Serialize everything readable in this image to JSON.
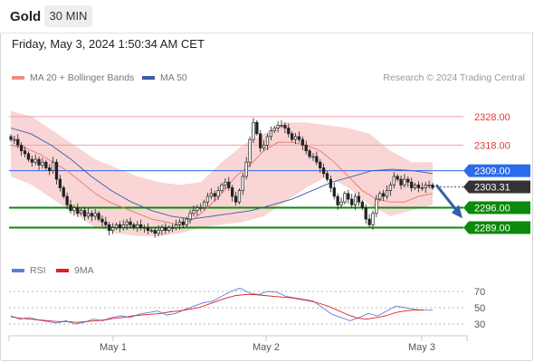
{
  "header": {
    "title": "Gold",
    "interval": "30 MIN"
  },
  "timestamp": "Friday, May 3, 2024 1:50:34 AM CET",
  "legend": {
    "main": [
      {
        "label": "MA 20 + Bollinger Bands",
        "color": "#f28b82"
      },
      {
        "label": "MA 50",
        "color": "#3a5ea8"
      }
    ],
    "rsi": [
      {
        "label": "RSI",
        "color": "#5b7fd6"
      },
      {
        "label": "9MA",
        "color": "#e02020"
      }
    ]
  },
  "copyright": "Research © 2024 Trading Central",
  "chart_data": [
    {
      "type": "candlestick",
      "title": "Gold",
      "xlabel": "",
      "ylabel": "",
      "ylim": [
        2283,
        2336
      ],
      "x_tick_labels": [
        "May 1",
        "May 2",
        "May 3"
      ],
      "last_price": 2303.31,
      "levels": [
        {
          "label": "2328.00",
          "value": 2328.0,
          "style": "resistance",
          "color": "#f29a9a"
        },
        {
          "label": "2318.00",
          "value": 2318.0,
          "style": "resistance",
          "color": "#f29a9a"
        },
        {
          "label": "2309.00",
          "value": 2309.0,
          "style": "pivot",
          "color": "#2a6bec"
        },
        {
          "label": "2303.31",
          "value": 2303.31,
          "style": "last-price",
          "color": "#333333"
        },
        {
          "label": "2296.00",
          "value": 2296.0,
          "style": "support",
          "color": "#0b8a0b"
        },
        {
          "label": "2289.00",
          "value": 2289.0,
          "style": "support",
          "color": "#0b8a0b"
        }
      ],
      "forecast_arrow": {
        "from": 2304,
        "to": 2291,
        "color": "#2f5fa8"
      },
      "close_series": [
        2320,
        2320,
        2318,
        2316,
        2315,
        2313,
        2312,
        2313,
        2311,
        2312,
        2310,
        2309,
        2312,
        2306,
        2303,
        2300,
        2297,
        2295,
        2296,
        2294,
        2295,
        2293,
        2294,
        2293,
        2294,
        2292,
        2291,
        2290,
        2288,
        2289,
        2290,
        2289,
        2290,
        2291,
        2290,
        2289,
        2290,
        2289,
        2289,
        2288,
        2288,
        2287,
        2288,
        2289,
        2288,
        2289,
        2289,
        2290,
        2291,
        2290,
        2292,
        2294,
        2295,
        2296,
        2296,
        2298,
        2300,
        2301,
        2300,
        2302,
        2304,
        2305,
        2303,
        2300,
        2298,
        2302,
        2307,
        2312,
        2320,
        2326,
        2322,
        2317,
        2318,
        2321,
        2323,
        2324,
        2325,
        2325,
        2324,
        2322,
        2320,
        2321,
        2320,
        2318,
        2316,
        2314,
        2314,
        2312,
        2310,
        2308,
        2306,
        2303,
        2300,
        2297,
        2298,
        2301,
        2299,
        2297,
        2300,
        2298,
        2296,
        2292,
        2290,
        2294,
        2299,
        2301,
        2300,
        2302,
        2304,
        2307,
        2306,
        2304,
        2306,
        2305,
        2303,
        2304,
        2303,
        2303,
        2304,
        2304,
        2303
      ],
      "ma20": [
        2318,
        2317,
        2315,
        2312,
        2309,
        2305,
        2301,
        2298,
        2296,
        2294,
        2292,
        2291,
        2290,
        2292,
        2296,
        2301,
        2307,
        2311,
        2316,
        2319,
        2319,
        2318,
        2316,
        2312,
        2307,
        2302,
        2299,
        2298,
        2298,
        2300,
        2301
      ],
      "ma50": [
        2324,
        2322,
        2318,
        2313,
        2307,
        2302,
        2298,
        2295,
        2293,
        2292,
        2293,
        2294,
        2295,
        2297,
        2299,
        2302,
        2305,
        2307,
        2309,
        2309.5,
        2309,
        2308
      ],
      "bollinger_upper": [
        2330,
        2328,
        2323,
        2318,
        2313,
        2310,
        2307,
        2305,
        2304,
        2305,
        2312,
        2318,
        2322,
        2326,
        2326,
        2325,
        2324,
        2322,
        2316,
        2312,
        2312
      ],
      "bollinger_lower": [
        2307,
        2304,
        2299,
        2294,
        2289,
        2287,
        2286,
        2286,
        2287,
        2289,
        2290,
        2291,
        2293,
        2298,
        2303,
        2307,
        2303,
        2297,
        2293,
        2295,
        2297
      ]
    },
    {
      "type": "line",
      "title": "",
      "ylim": [
        20,
        80
      ],
      "y_ticks": [
        70,
        50,
        30
      ],
      "x_tick_labels": [
        "May 1",
        "May 2",
        "May 3"
      ],
      "series": [
        {
          "name": "RSI",
          "values": [
            40,
            36,
            38,
            35,
            33,
            31,
            34,
            30,
            32,
            36,
            34,
            38,
            40,
            38,
            42,
            44,
            46,
            41,
            43,
            48,
            52,
            56,
            58,
            64,
            70,
            74,
            68,
            66,
            70,
            69,
            64,
            62,
            60,
            58,
            50,
            42,
            38,
            34,
            38,
            43,
            40,
            46,
            52,
            50,
            48,
            47,
            47
          ]
        },
        {
          "name": "9MA",
          "values": [
            39,
            37,
            36,
            35,
            34,
            33,
            33,
            32,
            33,
            34,
            35,
            37,
            38,
            40,
            41,
            42,
            43,
            45,
            46,
            48,
            50,
            54,
            58,
            62,
            65,
            66,
            66,
            65,
            64,
            63,
            62,
            60,
            58,
            55,
            51,
            46,
            41,
            37,
            36,
            38,
            40,
            44,
            46,
            47,
            47
          ]
        }
      ]
    }
  ]
}
